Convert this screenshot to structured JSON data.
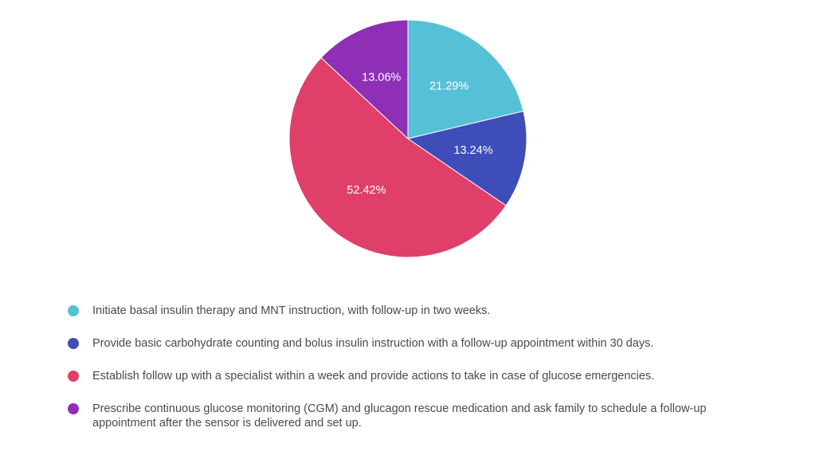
{
  "chart_data": {
    "type": "pie",
    "title": "",
    "series": [
      {
        "name": "Initiate basal insulin therapy and MNT instruction, with follow-up in two weeks.",
        "value": 21.29,
        "label": "21.29%",
        "color": "#56c1d6"
      },
      {
        "name": "Provide basic carbohydrate counting and bolus insulin instruction with a follow-up appointment within 30 days.",
        "value": 13.24,
        "label": "13.24%",
        "color": "#3e4db7"
      },
      {
        "name": "Establish follow up with a specialist within a week and provide actions to take in case of glucose emergencies.",
        "value": 52.42,
        "label": "52.42%",
        "color": "#e03f6a"
      },
      {
        "name": "Prescribe continuous glucose monitoring (CGM) and glucagon rescue medication and ask family to schedule a follow-up appointment after the sensor is delivered and set up.",
        "value": 13.06,
        "label": "13.06%",
        "color": "#8e2fb5"
      }
    ],
    "legend_position": "bottom"
  }
}
